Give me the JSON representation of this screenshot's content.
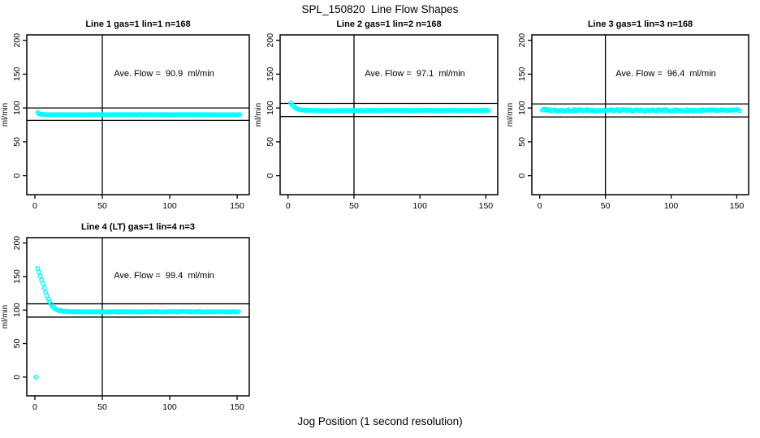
{
  "figure": {
    "title": "SPL_150820  Line Flow Shapes",
    "xlabel": "Jog Position (1 second resolution)"
  },
  "chart_data": [
    {
      "type": "scatter",
      "title": "Line 1 gas=1 lin=1 n=168",
      "n": 168,
      "annotation": "Ave. Flow =  90.9  ml/min",
      "ave_flow": 90.9,
      "ylabel": "ml/min",
      "xlim": [
        -6,
        159
      ],
      "ylim": [
        -28,
        208
      ],
      "xticks": [
        0,
        50,
        100,
        150
      ],
      "yticks": [
        0,
        50,
        100,
        150,
        200
      ],
      "vline_x": 50,
      "hlines_y": [
        100.0,
        81.8
      ],
      "point_color": "#00FFFF",
      "jitter": 0.25,
      "x_range": [
        2,
        152
      ],
      "keypoints": [
        [
          2,
          93.2
        ],
        [
          3,
          91.6
        ],
        [
          4,
          90.8
        ],
        [
          6,
          90.3
        ],
        [
          10,
          90.1
        ],
        [
          80,
          90.2
        ],
        [
          152,
          90.1
        ]
      ],
      "extra_points": []
    },
    {
      "type": "scatter",
      "title": "Line 2 gas=1 lin=2 n=168",
      "n": 168,
      "annotation": "Ave. Flow =  97.1  ml/min",
      "ave_flow": 97.1,
      "ylabel": "ml/min",
      "xlim": [
        -6,
        159
      ],
      "ylim": [
        -28,
        208
      ],
      "xticks": [
        0,
        50,
        100,
        150
      ],
      "yticks": [
        0,
        50,
        100,
        150,
        200
      ],
      "vline_x": 50,
      "hlines_y": [
        106.8,
        87.4
      ],
      "point_color": "#00FFFF",
      "jitter": 0.35,
      "x_range": [
        2,
        152
      ],
      "keypoints": [
        [
          2,
          107.5
        ],
        [
          3,
          104.8
        ],
        [
          4,
          102.6
        ],
        [
          5,
          100.9
        ],
        [
          6,
          99.6
        ],
        [
          7,
          98.6
        ],
        [
          8,
          97.9
        ],
        [
          10,
          97.1
        ],
        [
          12,
          96.7
        ],
        [
          15,
          96.4
        ],
        [
          25,
          96.2
        ],
        [
          152,
          96.4
        ]
      ],
      "extra_points": []
    },
    {
      "type": "scatter",
      "title": "Line 3 gas=1 lin=3 n=168",
      "n": 168,
      "annotation": "Ave. Flow =  96.4  ml/min",
      "ave_flow": 96.4,
      "ylabel": "ml/min",
      "xlim": [
        -6,
        159
      ],
      "ylim": [
        -28,
        208
      ],
      "xticks": [
        0,
        50,
        100,
        150
      ],
      "yticks": [
        0,
        50,
        100,
        150,
        200
      ],
      "vline_x": 50,
      "hlines_y": [
        106.0,
        86.8
      ],
      "point_color": "#00FFFF",
      "jitter": 1.3,
      "x_range": [
        2,
        152
      ],
      "keypoints": [
        [
          2,
          97.2
        ],
        [
          10,
          96.6
        ],
        [
          80,
          96.4
        ],
        [
          152,
          96.3
        ]
      ],
      "extra_points": []
    },
    {
      "type": "scatter",
      "title": "Line 4 (LT) gas=1 lin=4 n=3",
      "n": 3,
      "annotation": "Ave. Flow =  99.4  ml/min",
      "ave_flow": 99.4,
      "ylabel": "ml/min",
      "xlim": [
        -6,
        159
      ],
      "ylim": [
        -28,
        208
      ],
      "xticks": [
        0,
        50,
        100,
        150
      ],
      "yticks": [
        0,
        50,
        100,
        150,
        200
      ],
      "vline_x": 50,
      "hlines_y": [
        109.3,
        89.5
      ],
      "point_color": "#00FFFF",
      "jitter": 0.5,
      "x_range": [
        2,
        151
      ],
      "keypoints": [
        [
          2,
          162
        ],
        [
          3,
          157
        ],
        [
          4,
          151
        ],
        [
          5,
          145
        ],
        [
          6,
          139
        ],
        [
          7,
          133
        ],
        [
          8,
          127
        ],
        [
          9,
          121.5
        ],
        [
          10,
          116.5
        ],
        [
          11,
          112
        ],
        [
          12,
          108.5
        ],
        [
          13,
          105.8
        ],
        [
          14,
          103.6
        ],
        [
          15,
          102
        ],
        [
          16,
          100.8
        ],
        [
          17,
          99.9
        ],
        [
          18,
          99.2
        ],
        [
          20,
          98.4
        ],
        [
          22,
          97.9
        ],
        [
          25,
          97.6
        ],
        [
          30,
          97.4
        ],
        [
          50,
          97.3
        ],
        [
          100,
          97.5
        ],
        [
          151,
          97.3
        ]
      ],
      "extra_points": [
        [
          1,
          0
        ]
      ]
    }
  ]
}
